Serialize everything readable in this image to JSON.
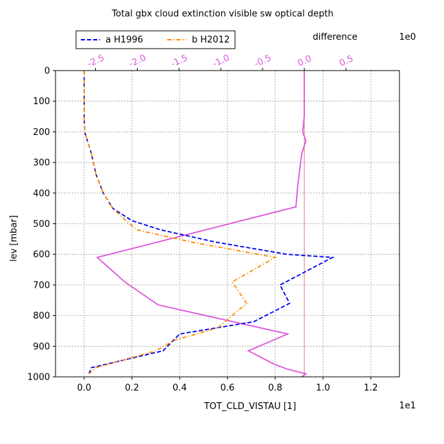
{
  "chart_data": {
    "type": "line",
    "title": "Total gbx cloud extinction visible sw optical depth",
    "xlabel": "TOT_CLD_VISTAU [1]",
    "x_exponent": "1e1",
    "ylabel": "lev [mbar]",
    "xlim": [
      -0.12,
      1.32
    ],
    "ylim": [
      1000,
      0
    ],
    "x_ticks": [
      "0.0",
      "0.2",
      "0.4",
      "0.6",
      "0.8",
      "1.0",
      "1.2"
    ],
    "x_tick_values": [
      0.0,
      0.2,
      0.4,
      0.6,
      0.8,
      1.0,
      1.2
    ],
    "y_ticks": [
      "0",
      "100",
      "200",
      "300",
      "400",
      "500",
      "600",
      "700",
      "800",
      "900",
      "1000"
    ],
    "y_tick_values": [
      0,
      100,
      200,
      300,
      400,
      500,
      600,
      700,
      800,
      900,
      1000
    ],
    "grid": true,
    "legend_position": "top-left",
    "series": [
      {
        "name": "a H1996",
        "color": "#0000ee",
        "style": "dashed",
        "points": [
          [
            0.0,
            0
          ],
          [
            0.0,
            50
          ],
          [
            0.0,
            100
          ],
          [
            0.0,
            150
          ],
          [
            0.002,
            200
          ],
          [
            0.03,
            270
          ],
          [
            0.05,
            340
          ],
          [
            0.08,
            400
          ],
          [
            0.12,
            450
          ],
          [
            0.2,
            490
          ],
          [
            0.32,
            520
          ],
          [
            0.55,
            560
          ],
          [
            0.85,
            600
          ],
          [
            1.04,
            610
          ],
          [
            0.82,
            700
          ],
          [
            0.86,
            760
          ],
          [
            0.71,
            820
          ],
          [
            0.4,
            860
          ],
          [
            0.33,
            915
          ],
          [
            0.03,
            970
          ],
          [
            0.02,
            990
          ]
        ]
      },
      {
        "name": "b H2012",
        "color": "#ff8c00",
        "style": "dashdot",
        "points": [
          [
            0.0,
            0
          ],
          [
            0.0,
            50
          ],
          [
            0.0,
            100
          ],
          [
            0.0,
            150
          ],
          [
            0.002,
            200
          ],
          [
            0.03,
            270
          ],
          [
            0.05,
            340
          ],
          [
            0.08,
            400
          ],
          [
            0.12,
            450
          ],
          [
            0.16,
            480
          ],
          [
            0.22,
            520
          ],
          [
            0.45,
            560
          ],
          [
            0.8,
            610
          ],
          [
            0.62,
            690
          ],
          [
            0.68,
            760
          ],
          [
            0.56,
            840
          ],
          [
            0.38,
            880
          ],
          [
            0.3,
            915
          ],
          [
            0.05,
            970
          ],
          [
            0.02,
            990
          ]
        ]
      }
    ],
    "difference": {
      "label": "difference",
      "exponent": "1e0",
      "color": "#dd55dd",
      "xlim": [
        -2.98,
        1.14
      ],
      "x_ticks": [
        "-2.5",
        "-2.0",
        "-1.5",
        "-1.0",
        "-0.5",
        "0.0",
        "0.5"
      ],
      "x_tick_values": [
        -2.5,
        -2.0,
        -1.5,
        -1.0,
        -0.5,
        0.0,
        0.5
      ],
      "zero_line_color": "#e05555",
      "points": [
        [
          0.0,
          0
        ],
        [
          0.0,
          50
        ],
        [
          0.0,
          100
        ],
        [
          0.0,
          150
        ],
        [
          -0.02,
          200
        ],
        [
          0.02,
          230
        ],
        [
          -0.03,
          270
        ],
        [
          -0.08,
          380
        ],
        [
          -0.1,
          445
        ],
        [
          -2.48,
          610
        ],
        [
          -2.15,
          690
        ],
        [
          -1.75,
          765
        ],
        [
          -0.2,
          860
        ],
        [
          -0.67,
          915
        ],
        [
          -0.35,
          960
        ],
        [
          -0.2,
          975
        ],
        [
          0.02,
          990
        ],
        [
          -0.03,
          1000
        ]
      ]
    }
  }
}
